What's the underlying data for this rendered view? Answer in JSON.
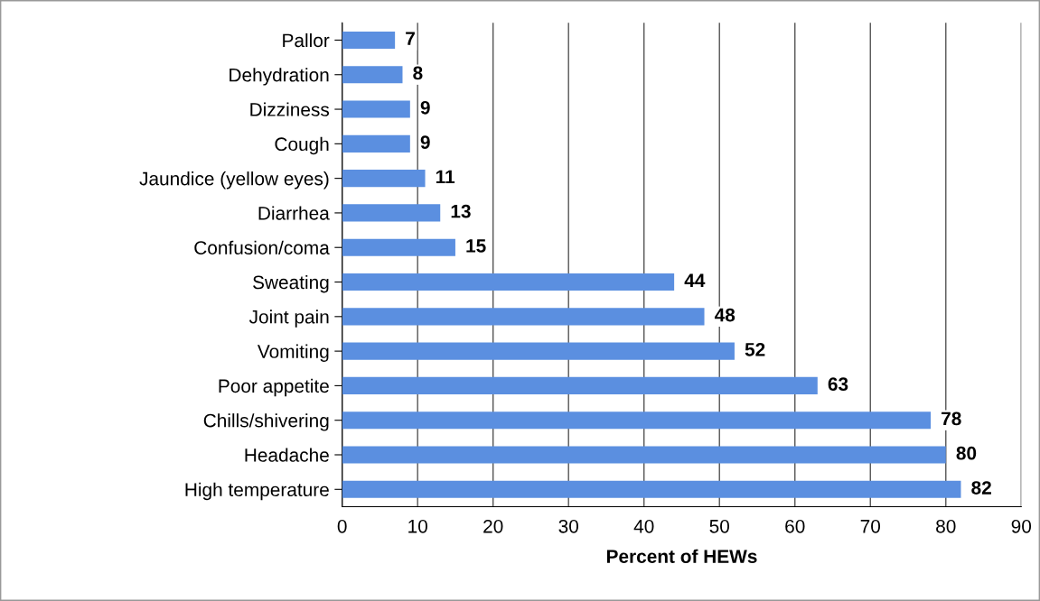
{
  "chart_data": {
    "type": "bar",
    "orientation": "horizontal",
    "xlabel": "Percent of HEWs",
    "categories": [
      "Pallor",
      "Dehydration",
      "Dizziness",
      "Cough",
      "Jaundice (yellow eyes)",
      "Diarrhea",
      "Confusion/coma",
      "Sweating",
      "Joint pain",
      "Vomiting",
      "Poor appetite",
      "Chills/shivering",
      "Headache",
      "High temperature"
    ],
    "values": [
      7,
      8,
      9,
      9,
      11,
      13,
      15,
      44,
      48,
      52,
      63,
      78,
      80,
      82
    ],
    "color": "#5b8fe0",
    "xlim": [
      0,
      90
    ],
    "xticks": [
      0,
      10,
      20,
      30,
      40,
      50,
      60,
      70,
      80,
      90
    ],
    "grid": "x",
    "data_labels": true
  }
}
